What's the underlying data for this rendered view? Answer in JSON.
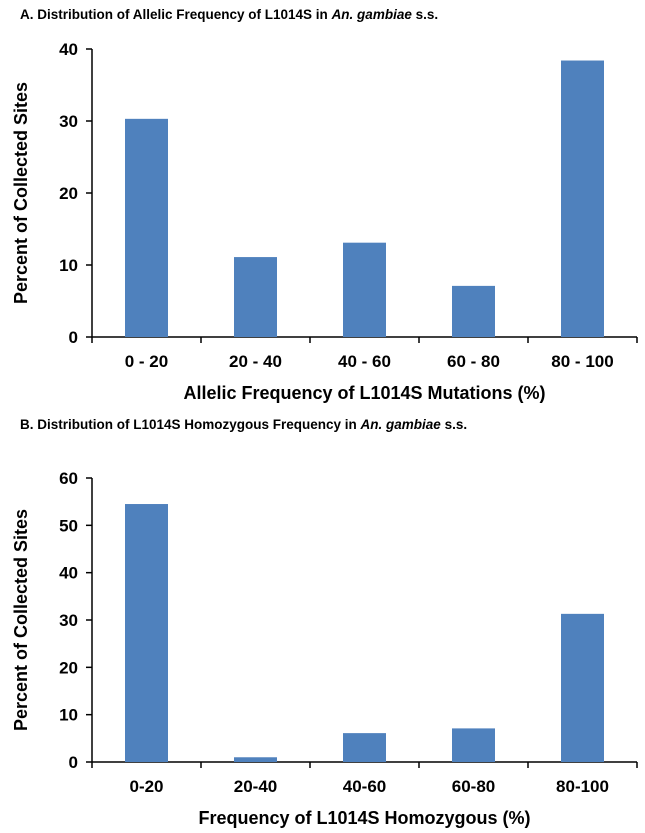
{
  "chart_data": [
    {
      "type": "bar",
      "title_prefix": "A. Distribution of Allelic Frequency of L1014S in ",
      "title_species": "An. gambiae",
      "title_suffix": " s.s.",
      "categories": [
        "0 - 20",
        "20 - 40",
        "40 - 60",
        "60 - 80",
        "80 - 100"
      ],
      "values": [
        30.3,
        11.1,
        13.1,
        7.1,
        38.4
      ],
      "xlabel": "Allelic Frequency of L1014S Mutations (%)",
      "ylabel": "Percent of Collected Sites",
      "ylim": [
        0,
        40
      ],
      "yticks": [
        0,
        10,
        20,
        30,
        40
      ],
      "grid": false,
      "bar_color": "#4f81bd"
    },
    {
      "type": "bar",
      "title_prefix": "B. Distribution of L1014S Homozygous Frequency in ",
      "title_species": "An. gambiae",
      "title_suffix": " s.s.",
      "categories": [
        "0-20",
        "20-40",
        "40-60",
        "60-80",
        "80-100"
      ],
      "values": [
        54.5,
        1.0,
        6.1,
        7.1,
        31.3
      ],
      "xlabel": "Frequency of L1014S Homozygous (%)",
      "ylabel": "Percent of Collected Sites",
      "ylim": [
        0,
        60
      ],
      "yticks": [
        0,
        10,
        20,
        30,
        40,
        50,
        60
      ],
      "grid": false,
      "bar_color": "#4f81bd"
    }
  ]
}
